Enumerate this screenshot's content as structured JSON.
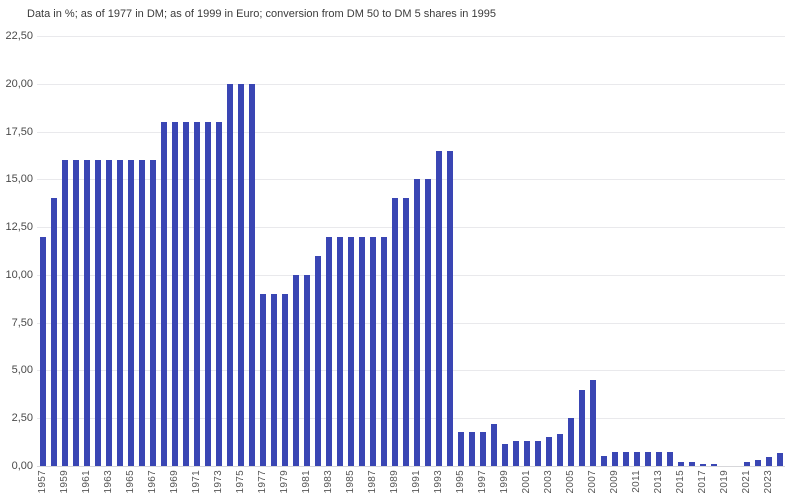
{
  "chart_data": {
    "type": "bar",
    "title": "Data in %; as of 1977 in DM; as of 1999 in Euro; conversion from DM 50 to DM 5 shares in 1995",
    "xlabel": "",
    "ylabel": "",
    "ylim": [
      0,
      22.5
    ],
    "y_tick_step": 2.5,
    "grid": true,
    "legend": "none",
    "bar_color": "#3a46b4",
    "x_tick_rotation": 90,
    "y_tick_labels_top_to_bottom": [
      "22,50",
      "20,00",
      "17,50",
      "15,00",
      "12,50",
      "10,00",
      "7,50",
      "5,00",
      "2,50",
      "0,00"
    ],
    "x_tick_labels": [
      "1957",
      "1959",
      "1961",
      "1963",
      "1965",
      "1967",
      "1969",
      "1971",
      "1973",
      "1975",
      "1977",
      "1979",
      "1981",
      "1983",
      "1985",
      "1987",
      "1989",
      "1991",
      "1993",
      "1995",
      "1997",
      "1999",
      "2001",
      "2003",
      "2005",
      "2007",
      "2009",
      "2011",
      "2013",
      "2015",
      "2017",
      "2019",
      "2021",
      "2023"
    ],
    "x_tick_every_n_bars": 2,
    "x": [
      1957,
      1958,
      1959,
      1960,
      1961,
      1962,
      1963,
      1964,
      1965,
      1966,
      1967,
      1968,
      1969,
      1970,
      1971,
      1972,
      1973,
      1974,
      1975,
      1976,
      1977,
      1978,
      1979,
      1980,
      1981,
      1982,
      1983,
      1984,
      1985,
      1986,
      1987,
      1988,
      1989,
      1990,
      1991,
      1992,
      1993,
      1994,
      1995,
      1996,
      1997,
      1998,
      1999,
      2000,
      2001,
      2002,
      2003,
      2004,
      2005,
      2006,
      2007,
      2008,
      2009,
      2010,
      2011,
      2012,
      2013,
      2014,
      2015,
      2016,
      2017,
      2018,
      2019,
      2020,
      2021,
      2022,
      2023,
      2024
    ],
    "values": [
      12,
      14,
      16,
      16,
      16,
      16,
      16,
      16,
      16,
      16,
      16,
      18,
      18,
      18,
      18,
      18,
      18,
      20,
      20,
      20,
      9,
      9,
      9,
      10,
      10,
      11,
      12,
      12,
      12,
      12,
      12,
      12,
      14,
      14,
      15,
      15,
      16.5,
      16.5,
      1.8,
      1.8,
      1.8,
      2.2,
      1.15,
      1.3,
      1.3,
      1.3,
      1.5,
      1.7,
      2.5,
      4,
      4.5,
      0.5,
      0.75,
      0.75,
      0.75,
      0.75,
      0.75,
      0.75,
      0.19,
      0.19,
      0.11,
      0.11,
      0,
      0,
      0.2,
      0.3,
      0.45,
      0.68
    ]
  }
}
